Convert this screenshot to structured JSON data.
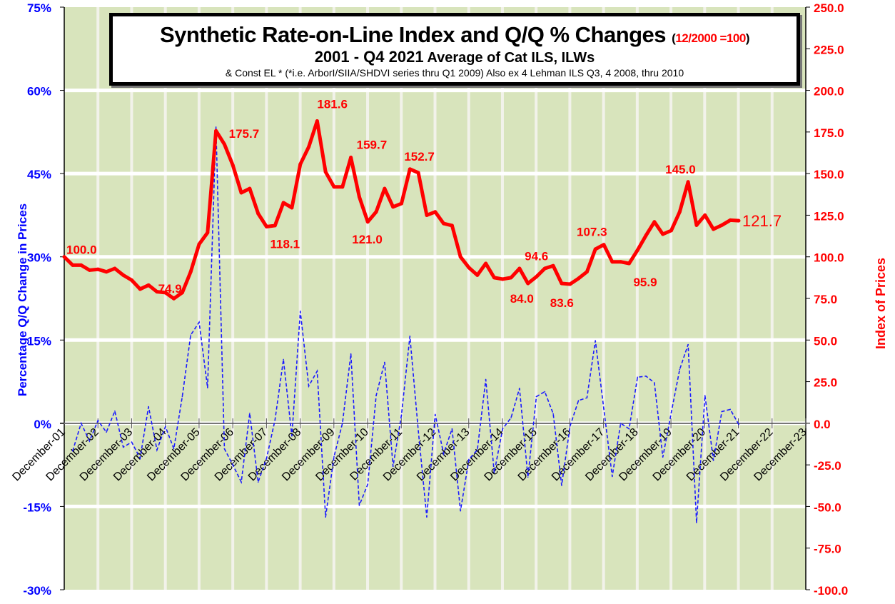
{
  "chart_data": {
    "type": "line",
    "title": "Synthetic Rate-on-Line Index and Q/Q % Changes",
    "title_note": "12/2000 =100",
    "subtitle_bold": "2001 - Q4 2021",
    "subtitle_rest": "Average of Cat ILS, ILWs",
    "footnote": "& Const EL * (*i.e. ArborI/SIIA/SHDVI series thru Q1 2009)  Also ex 4 Lehman ILS Q3, 4 2008, thru 2010",
    "ylabel_left": "Percentage Q/Q Change in Prices",
    "ylabel_right": "Index of Prices",
    "ylim_left": [
      -30,
      75
    ],
    "ylim_right": [
      -100,
      250
    ],
    "left_ticks": [
      "75%",
      "60%",
      "45%",
      "30%",
      "15%",
      "0%",
      "-15%",
      "-30%"
    ],
    "right_ticks": [
      "250.0",
      "225.0",
      "200.0",
      "175.0",
      "150.0",
      "125.0",
      "100.0",
      "75.0",
      "50.0",
      "25.0",
      "0.0",
      "-25.0",
      "-50.0",
      "-75.0",
      "-100.0"
    ],
    "x_labels": [
      "December-01",
      "December-02",
      "December-03",
      "December-04",
      "December-05",
      "December-06",
      "December-07",
      "December-08",
      "December-09",
      "December-10",
      "December-11",
      "December-12",
      "December-13",
      "December-14",
      "December-15",
      "December-16",
      "December-17",
      "December-18",
      "December-19",
      "December-20",
      "December-21",
      "December-22",
      "December-23"
    ],
    "grid": true,
    "colors": {
      "index": "#ff0000",
      "change": "#1a1aff",
      "plot_bg": "#d8e4bc",
      "left_axis": "#0000ff",
      "right_axis": "#ff0000"
    },
    "series": [
      {
        "name": "Index of Prices",
        "axis": "right",
        "values": [
          100,
          95,
          95,
          92,
          92.5,
          91,
          93,
          89,
          86,
          80.6,
          83,
          79,
          78.5,
          74.9,
          78.5,
          91,
          107.6,
          114.5,
          175.7,
          167.6,
          155,
          138.5,
          141,
          126,
          118.1,
          118.8,
          132.5,
          129.5,
          155.6,
          166,
          181.6,
          151,
          142,
          142,
          159.7,
          136,
          121,
          127,
          141,
          130,
          132,
          152.7,
          150.5,
          125,
          127,
          120,
          118.8,
          100,
          93.5,
          89,
          96,
          87.5,
          86.6,
          87.5,
          93,
          84,
          88,
          93,
          94.6,
          84,
          83.6,
          87,
          91,
          104.6,
          107.3,
          97,
          97,
          96,
          104,
          112.8,
          121,
          113.6,
          115.8,
          127,
          145,
          119,
          125,
          116.6,
          119,
          122,
          121.7
        ]
      },
      {
        "name": "Q/Q % Change",
        "axis": "left",
        "start_index": 1,
        "values": [
          -5.0,
          0,
          -3.2,
          0.5,
          -1.6,
          2.2,
          -4.3,
          -3.4,
          -6.3,
          3.0,
          -4.8,
          -0.6,
          -4.6,
          4.8,
          15.9,
          18.2,
          6.4,
          53.4,
          -4.6,
          -7.5,
          -10.6,
          1.8,
          -10.6,
          -6.3,
          0.6,
          11.5,
          -2.3,
          20.2,
          6.7,
          9.4,
          -16.9,
          -6.0,
          0,
          12.5,
          -14.8,
          -11.0,
          5.0,
          11.0,
          -7.8,
          1.5,
          15.7,
          -1.4,
          -16.9,
          1.6,
          -5.5,
          -1.0,
          -15.8,
          -6.5,
          -4.8,
          7.9,
          -8.9,
          -1.0,
          1.0,
          6.3,
          -9.7,
          4.8,
          5.7,
          1.7,
          -11.2,
          -0.5,
          4.1,
          4.6,
          14.9,
          2.6,
          -9.6,
          0,
          -1.0,
          8.3,
          8.5,
          7.3,
          -6.1,
          1.9,
          9.7,
          14.2,
          -17.9,
          5.0,
          -6.7,
          2.1,
          2.5,
          -0.2
        ]
      }
    ],
    "annotations": [
      {
        "text": "100.0",
        "index": 0
      },
      {
        "text": "74.9",
        "index": 13
      },
      {
        "text": "175.7",
        "index": 18
      },
      {
        "text": "118.1",
        "index": 24
      },
      {
        "text": "181.6",
        "index": 30
      },
      {
        "text": "159.7",
        "index": 34
      },
      {
        "text": "121.0",
        "index": 36
      },
      {
        "text": "152.7",
        "index": 41
      },
      {
        "text": "84.0",
        "index": 55
      },
      {
        "text": "94.6",
        "index": 58
      },
      {
        "text": "83.6",
        "index": 60
      },
      {
        "text": "107.3",
        "index": 64
      },
      {
        "text": "95.9",
        "index": 67
      },
      {
        "text": "145.0",
        "index": 74
      },
      {
        "text": "121.7",
        "index": 80
      }
    ]
  }
}
